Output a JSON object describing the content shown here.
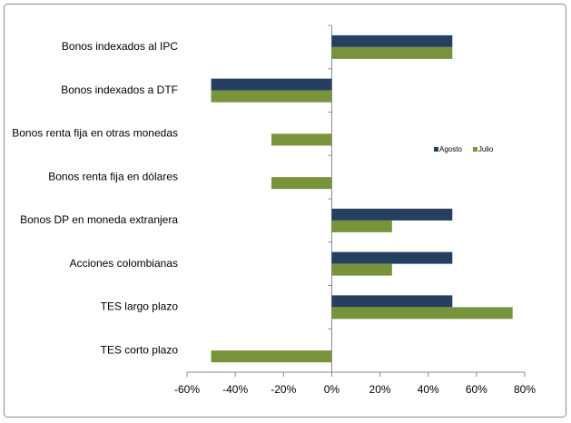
{
  "chart_data": {
    "type": "hbar",
    "categories": [
      "Bonos indexados al IPC",
      "Bonos indexados a DTF",
      "Bonos renta fija en otras monedas",
      "Bonos renta fija en dólares",
      "Bonos DP en moneda extranjera",
      "Acciones colombianas",
      "TES largo plazo",
      "TES corto plazo"
    ],
    "series": [
      {
        "name": "Agosto",
        "color": "#243f60",
        "values": [
          50,
          -50,
          0,
          0,
          50,
          50,
          50,
          0
        ]
      },
      {
        "name": "Julio",
        "color": "#77933c",
        "values": [
          50,
          -50,
          -25,
          -25,
          25,
          25,
          75,
          -50
        ]
      }
    ],
    "xlim": [
      -60,
      80
    ],
    "xticks": [
      {
        "value": -60,
        "label": "-60%"
      },
      {
        "value": -40,
        "label": "-40%"
      },
      {
        "value": -20,
        "label": "-20%"
      },
      {
        "value": 0,
        "label": "0%"
      },
      {
        "value": 20,
        "label": "20%"
      },
      {
        "value": 40,
        "label": "40%"
      },
      {
        "value": 60,
        "label": "60%"
      },
      {
        "value": 80,
        "label": "80%"
      }
    ],
    "legend": "right"
  }
}
